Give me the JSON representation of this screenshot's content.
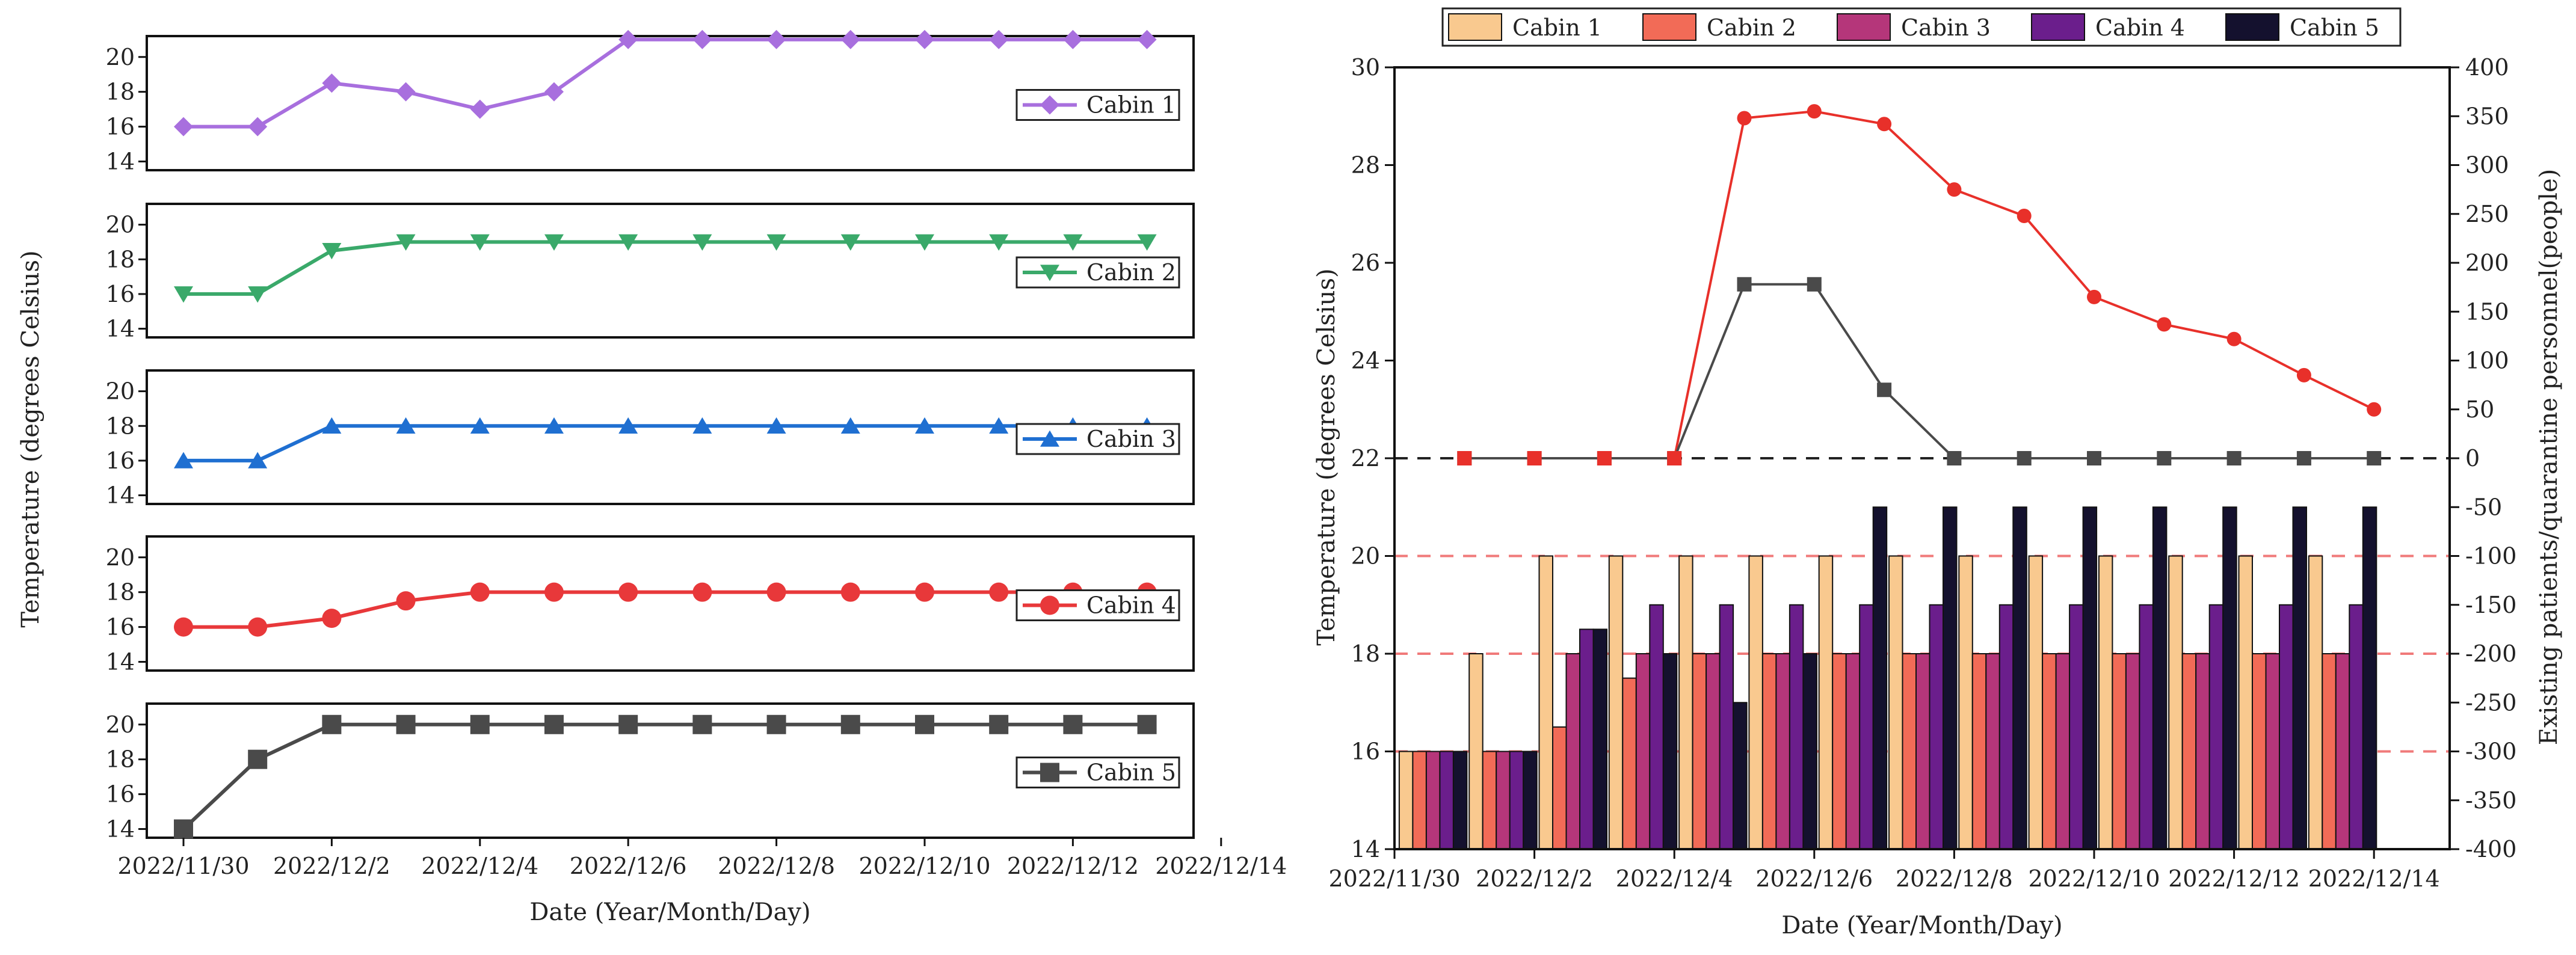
{
  "chart_data": [
    {
      "type": "line",
      "subtype": "stacked-panels",
      "xlabel": "Date (Year/Month/Day)",
      "ylabel": "Temperature (degrees Celsius)",
      "x_tick_labels": [
        "2022/11/30",
        "2022/12/2",
        "2022/12/4",
        "2022/12/6",
        "2022/12/8",
        "2022/12/10",
        "2022/12/12",
        "2022/12/14"
      ],
      "x": [
        1,
        2,
        3,
        4,
        5,
        6,
        7,
        8,
        9,
        10,
        11,
        12,
        13,
        14
      ],
      "ylim": [
        13.5,
        21.2
      ],
      "y_ticks": [
        14,
        16,
        18,
        20
      ],
      "legend_position": "right",
      "series": [
        {
          "name": "Cabin 1",
          "color": "#a86fde",
          "marker": "diamond",
          "values": [
            16,
            16,
            18.5,
            18,
            17,
            18,
            21,
            21,
            21,
            21,
            21,
            21,
            21,
            21
          ]
        },
        {
          "name": "Cabin 2",
          "color": "#3aa96a",
          "marker": "triangle-down",
          "values": [
            16,
            16,
            18.5,
            19,
            19,
            19,
            19,
            19,
            19,
            19,
            19,
            19,
            19,
            19
          ]
        },
        {
          "name": "Cabin 3",
          "color": "#1f6fd1",
          "marker": "triangle-up",
          "values": [
            16,
            16,
            18,
            18,
            18,
            18,
            18,
            18,
            18,
            18,
            18,
            18,
            18,
            18
          ]
        },
        {
          "name": "Cabin 4",
          "color": "#e8383a",
          "marker": "circle",
          "values": [
            16,
            16,
            16.5,
            17.5,
            18,
            18,
            18,
            18,
            18,
            18,
            18,
            18,
            18,
            18
          ]
        },
        {
          "name": "Cabin 5",
          "color": "#4a4a4a",
          "marker": "square",
          "values": [
            14,
            18,
            20,
            20,
            20,
            20,
            20,
            20,
            20,
            20,
            20,
            20,
            20,
            20
          ]
        }
      ]
    },
    {
      "type": "bar",
      "subtype": "grouped-bar-with-lines-dual-axis",
      "xlabel": "Date (Year/Month/Day)",
      "ylabel": "Temperature (degrees Celsius)",
      "ylabel_right": "Existing patients/quarantine personnel(people)",
      "x_tick_labels": [
        "2022/11/30",
        "2022/12/2",
        "2022/12/4",
        "2022/12/6",
        "2022/12/8",
        "2022/12/10",
        "2022/12/12",
        "2022/12/14"
      ],
      "ylim": [
        14,
        30
      ],
      "y_ticks": [
        14,
        16,
        18,
        20,
        22,
        24,
        26,
        28,
        30
      ],
      "ylim_right": [
        -400,
        400
      ],
      "y_ticks_right": [
        -400,
        -350,
        -300,
        -250,
        -200,
        -150,
        -100,
        -50,
        0,
        50,
        100,
        150,
        200,
        250,
        300,
        350,
        400
      ],
      "legend_position": "top",
      "categories": [
        1,
        2,
        3,
        4,
        5,
        6,
        7,
        8,
        9,
        10,
        11,
        12,
        13,
        14
      ],
      "bar_series": [
        {
          "name": "Cabin 1",
          "color": "#f9c98f",
          "values": [
            16,
            18,
            20,
            20,
            20,
            20,
            20,
            20,
            20,
            20,
            20,
            20,
            20,
            20
          ]
        },
        {
          "name": "Cabin 2",
          "color": "#f26b57",
          "values": [
            16,
            16,
            16.5,
            17.5,
            18,
            18,
            18,
            18,
            18,
            18,
            18,
            18,
            18,
            18
          ]
        },
        {
          "name": "Cabin 3",
          "color": "#b5367a",
          "values": [
            16,
            16,
            18,
            18,
            18,
            18,
            18,
            18,
            18,
            18,
            18,
            18,
            18,
            18
          ]
        },
        {
          "name": "Cabin 4",
          "color": "#6b1e8c",
          "values": [
            16,
            16,
            18.5,
            19,
            19,
            19,
            19,
            19,
            19,
            19,
            19,
            19,
            19,
            19
          ]
        },
        {
          "name": "Cabin 5",
          "color": "#14112e",
          "values": [
            16,
            16,
            18.5,
            18,
            17,
            18,
            21,
            21,
            21,
            21,
            21,
            21,
            21,
            21
          ]
        }
      ],
      "line_series": [
        {
          "name": "Existing patients",
          "color": "#e8302a",
          "axis": "right",
          "x": [
            1,
            2,
            3,
            4,
            5,
            6,
            7,
            8,
            9,
            10,
            11,
            12,
            13,
            14
          ],
          "values": [
            0,
            0,
            0,
            0,
            348,
            355,
            342,
            275,
            248,
            165,
            137,
            122,
            85,
            50
          ]
        },
        {
          "name": "Quarantine personnel",
          "color": "#4a4a4a",
          "axis": "right",
          "x": [
            1,
            2,
            3,
            4,
            5,
            6,
            7,
            8,
            9,
            10,
            11,
            12,
            13,
            14
          ],
          "values": [
            0,
            0,
            0,
            0,
            178,
            178,
            70,
            0,
            0,
            0,
            0,
            0,
            0,
            0
          ]
        }
      ],
      "reference_lines": [
        {
          "axis": "right",
          "value": 0,
          "color": "#222222",
          "style": "dashed"
        },
        {
          "axis": "left",
          "value": 20,
          "color": "#f07a7a",
          "style": "dashed"
        },
        {
          "axis": "left",
          "value": 18,
          "color": "#f07a7a",
          "style": "dashed"
        },
        {
          "axis": "left",
          "value": 16,
          "color": "#f07a7a",
          "style": "dashed"
        }
      ]
    }
  ]
}
